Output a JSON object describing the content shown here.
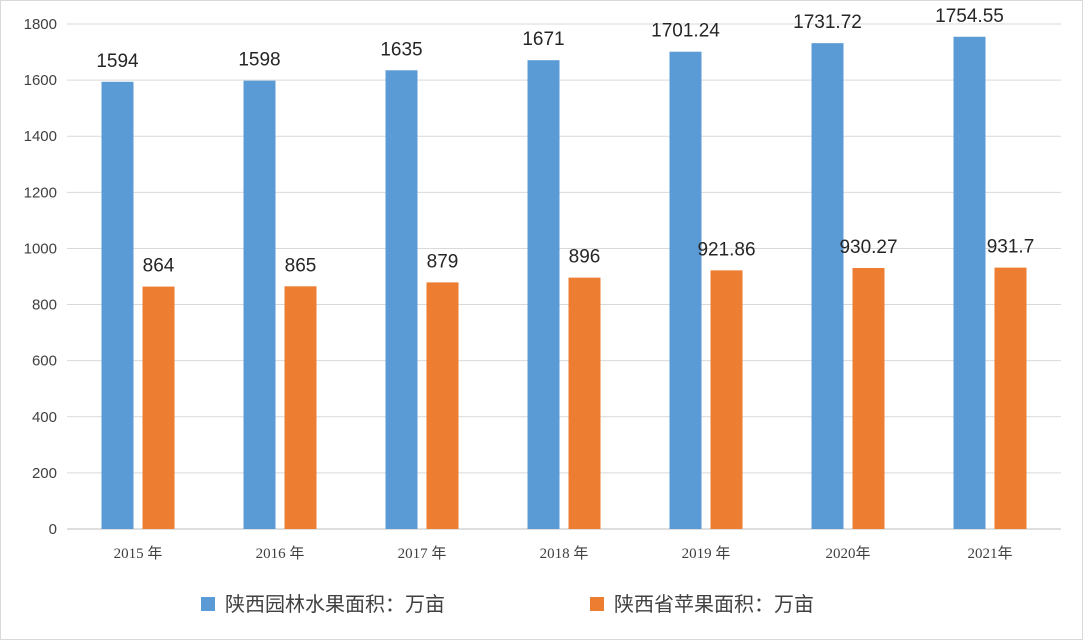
{
  "chart_data": {
    "type": "bar",
    "categories": [
      "2015 年",
      "2016 年",
      "2017 年",
      "2018 年",
      "2019 年",
      "2020年",
      "2021年"
    ],
    "series": [
      {
        "name": "陕西园林水果面积：万亩",
        "color": "#5B9BD5",
        "values": [
          1594,
          1598,
          1635,
          1671,
          1701.24,
          1731.72,
          1754.55
        ],
        "data_labels": [
          "1594",
          "1598",
          "1635",
          "1671",
          "1701.24",
          "1731.72",
          "1754.55"
        ]
      },
      {
        "name": "陕西省苹果面积：万亩",
        "color": "#ED7D31",
        "values": [
          864,
          865,
          879,
          896,
          921.86,
          930.27,
          931.7
        ],
        "data_labels": [
          "864",
          "865",
          "879",
          "896",
          "921.86",
          "930.27",
          "931.7"
        ]
      }
    ],
    "ylim": [
      0,
      1800
    ],
    "yticks": [
      0,
      200,
      400,
      600,
      800,
      1000,
      1200,
      1400,
      1600,
      1800
    ],
    "grid": true,
    "legend_position": "bottom",
    "title": "",
    "xlabel": "",
    "ylabel": ""
  }
}
